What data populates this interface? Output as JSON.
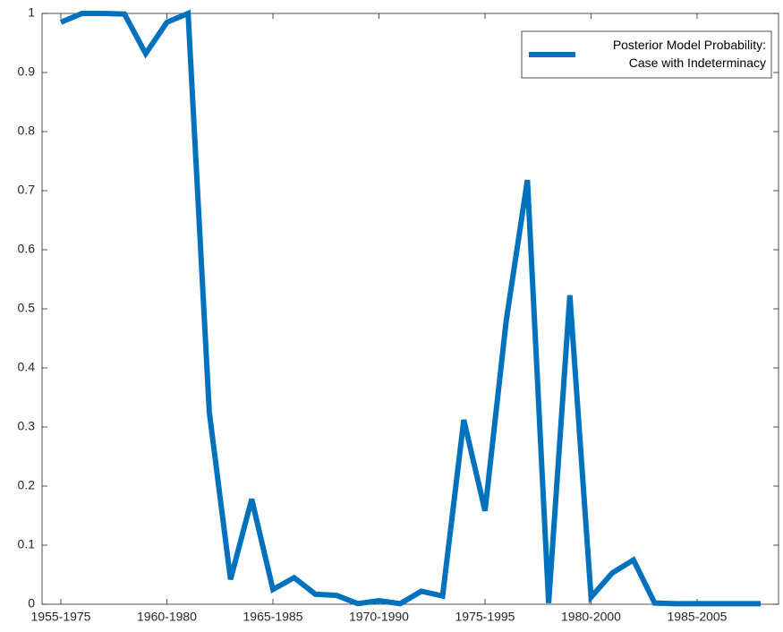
{
  "chart_data": {
    "type": "line",
    "categories": [
      "1955-1975",
      null,
      null,
      null,
      null,
      "1960-1980",
      null,
      null,
      null,
      null,
      "1965-1985",
      null,
      null,
      null,
      null,
      "1970-1990",
      null,
      null,
      null,
      null,
      "1975-1995",
      null,
      null,
      null,
      null,
      "1980-2000",
      null,
      null,
      null,
      null,
      "1985-2005",
      null,
      null,
      null
    ],
    "series": [
      {
        "name": "Posterior Model Probability:\nCase with Indeterminacy",
        "color": "#0072bd",
        "values": [
          0.985,
          1.0,
          1.0,
          0.999,
          0.932,
          0.985,
          1.0,
          0.325,
          0.042,
          0.178,
          0.025,
          0.045,
          0.017,
          0.015,
          0.001,
          0.006,
          0.001,
          0.022,
          0.014,
          0.312,
          0.158,
          0.48,
          0.718,
          0.002,
          0.523,
          0.012,
          0.053,
          0.075,
          0.002,
          0.001,
          0.001,
          0.001,
          0.001,
          0.001
        ]
      }
    ],
    "ylim": [
      0,
      1
    ],
    "yticks": [
      0,
      0.1,
      0.2,
      0.3,
      0.4,
      0.5,
      0.6,
      0.7,
      0.8,
      0.9,
      1
    ],
    "legend": "top-right"
  }
}
